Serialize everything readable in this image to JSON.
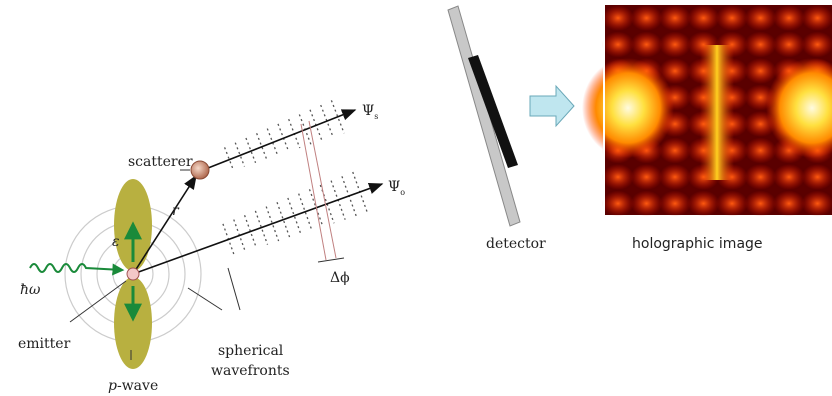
{
  "labels": {
    "scatterer": "scatterer",
    "r": "r",
    "epsilon": "ε",
    "hbar_omega": "ħω",
    "emitter": "emitter",
    "p_wave": {
      "p": "p",
      "rest": "-wave"
    },
    "spherical": "spherical",
    "wavefronts": "wavefronts",
    "psi_s": {
      "symbol": "Ψ",
      "sub": "s"
    },
    "psi_o": {
      "symbol": "Ψ",
      "sub": "o"
    },
    "delta_phi": "Δϕ",
    "detector": "detector",
    "holographic_image": "holographic image"
  }
}
